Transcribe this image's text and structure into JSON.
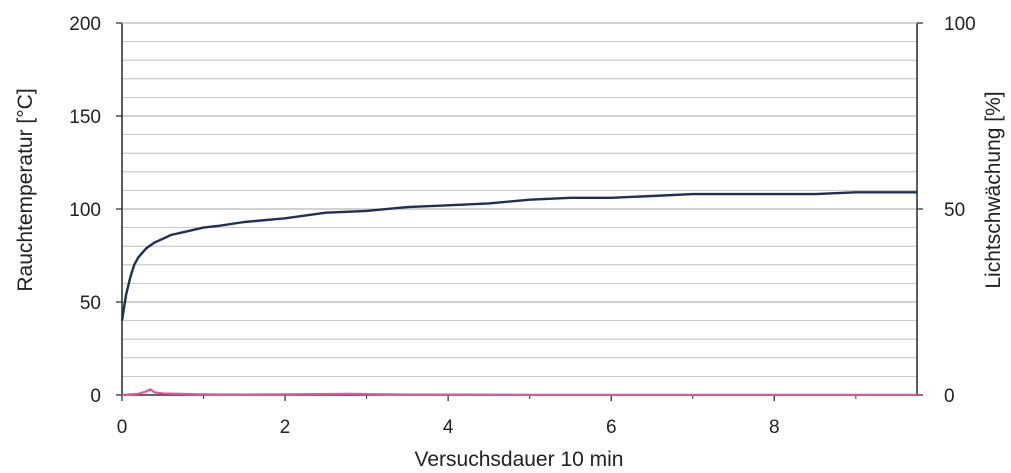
{
  "chart_data": {
    "type": "line",
    "xlabel": "Versuchsdauer 10 min",
    "ylabel": "Rauchtemperatur [°C]",
    "y2label": "Lichtschwächung [%]",
    "xlim": [
      0,
      9.75
    ],
    "ylim": [
      0,
      200
    ],
    "y2lim": [
      0,
      100
    ],
    "x_ticks": [
      "0",
      "2",
      "4",
      "6",
      "8"
    ],
    "y_ticks": [
      "0",
      "50",
      "100",
      "150",
      "200"
    ],
    "y2_ticks": [
      "0",
      "50",
      "100"
    ],
    "grid": true,
    "colors": {
      "temperature": "#1f2f55",
      "light": "#e0559a",
      "grid": "#b8b8b8",
      "axis": "#333333",
      "y2_title": "#e0559a"
    },
    "series": [
      {
        "axis": "left",
        "x": [
          0,
          0.05,
          0.1,
          0.15,
          0.2,
          0.3,
          0.4,
          0.5,
          0.6,
          0.8,
          1.0,
          1.2,
          1.5,
          2.0,
          2.5,
          3.0,
          3.5,
          4.0,
          4.5,
          5.0,
          5.5,
          6.0,
          6.5,
          7.0,
          7.5,
          8.0,
          8.5,
          9.0,
          9.5,
          9.75
        ],
        "y": [
          40,
          54,
          63,
          70,
          74,
          79,
          82,
          84,
          86,
          88,
          90,
          91,
          93,
          95,
          98,
          99,
          101,
          102,
          103,
          105,
          106,
          106,
          107,
          108,
          108,
          108,
          108,
          109,
          109,
          109
        ]
      },
      {
        "axis": "right",
        "x": [
          0,
          0.2,
          0.3,
          0.35,
          0.4,
          0.5,
          0.7,
          1.0,
          1.5,
          2.0,
          2.8,
          3.5,
          4.0,
          5.0,
          6.0,
          7.0,
          8.0,
          9.0,
          9.75
        ],
        "y": [
          0,
          0.3,
          1.0,
          1.5,
          0.7,
          0.4,
          0.3,
          0.2,
          0.1,
          0.2,
          0.3,
          0.1,
          0.1,
          0.05,
          0.05,
          0.05,
          0.05,
          0.05,
          0.05
        ]
      }
    ]
  }
}
